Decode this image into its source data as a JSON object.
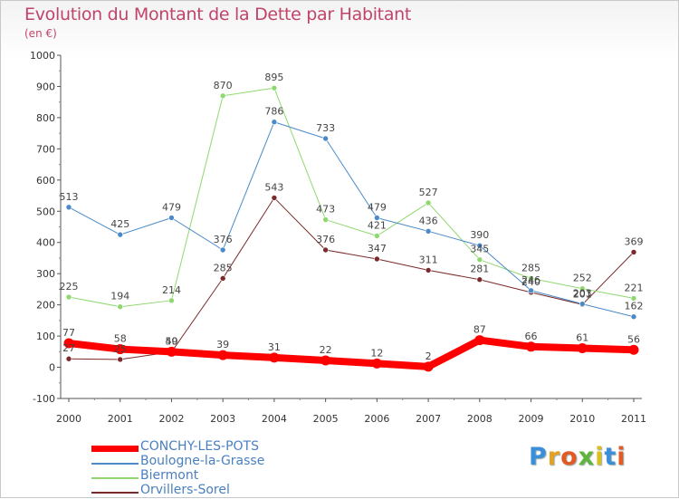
{
  "title": "Evolution du Montant de la Dette par Habitant",
  "subtitle": "(en €)",
  "logo": {
    "letters": [
      "P",
      "r",
      "o",
      "x",
      "i",
      "t",
      "i"
    ],
    "colors": [
      "#3b8fd8",
      "#e8a020",
      "#e25b24",
      "#5fb53a",
      "#d8c020",
      "#3b8fd8",
      "#e25b24"
    ]
  },
  "chart_data": {
    "type": "line",
    "title": "Evolution du Montant de la Dette par Habitant",
    "ylabel": "(en €)",
    "xlabel": "",
    "ylim": [
      -100,
      1000
    ],
    "yticks": [
      -100,
      0,
      100,
      200,
      300,
      400,
      500,
      600,
      700,
      800,
      900,
      1000
    ],
    "x": [
      "2000",
      "2001",
      "2002",
      "2003",
      "2004",
      "2005",
      "2006",
      "2007",
      "2008",
      "2009",
      "2010",
      "2011"
    ],
    "grid": false,
    "legend_position": "bottom-left",
    "series": [
      {
        "name": "Orvillers-Sorel",
        "color": "#7a2a2a",
        "width": 1,
        "values": [
          27,
          25,
          49,
          285,
          543,
          376,
          347,
          311,
          281,
          240,
          201,
          369
        ],
        "labels": [
          "27",
          "25",
          "49",
          "285",
          "543",
          "376",
          "347",
          "311",
          "281",
          "240",
          "201",
          "369"
        ]
      },
      {
        "name": "Biermont",
        "color": "#8fd870",
        "width": 1,
        "values": [
          225,
          194,
          214,
          870,
          895,
          473,
          421,
          527,
          345,
          285,
          252,
          221
        ],
        "labels": [
          "225",
          "194",
          "214",
          "870",
          "895",
          "473",
          "421",
          "527",
          "345",
          "285",
          "252",
          "221"
        ]
      },
      {
        "name": "Boulogne-la-Grasse",
        "color": "#4a8ac8",
        "width": 1,
        "values": [
          513,
          425,
          479,
          376,
          786,
          733,
          479,
          436,
          390,
          246,
          203,
          162
        ],
        "labels": [
          "513",
          "425",
          "479",
          "376",
          "786",
          "733",
          "479",
          "436",
          "390",
          "246",
          "203",
          "162"
        ]
      },
      {
        "name": "CONCHY-LES-POTS",
        "color": "#ff0000",
        "width": 8,
        "values": [
          77,
          58,
          50,
          39,
          31,
          22,
          12,
          2,
          87,
          66,
          61,
          56
        ],
        "labels": [
          "77",
          "58",
          "50",
          "39",
          "31",
          "22",
          "12",
          "2",
          "87",
          "66",
          "61",
          "56"
        ]
      }
    ],
    "legend_order": [
      "CONCHY-LES-POTS",
      "Boulogne-la-Grasse",
      "Biermont",
      "Orvillers-Sorel"
    ]
  }
}
